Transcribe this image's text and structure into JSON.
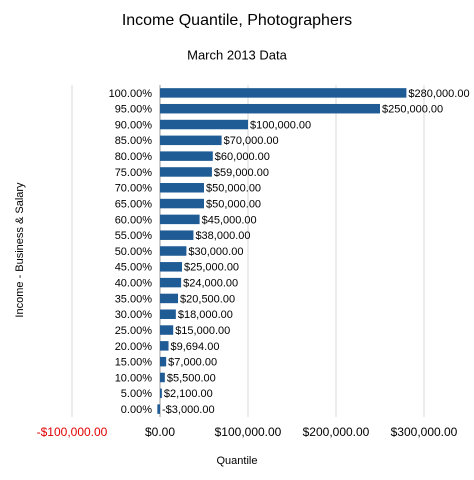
{
  "chart_data": {
    "type": "barh",
    "title": "Income Quantile, Photographers",
    "subtitle": "March 2013 Data",
    "x_label": "Quantile",
    "y_label": "Income - Business & Salary",
    "categories": [
      "100.00%",
      "95.00%",
      "90.00%",
      "85.00%",
      "80.00%",
      "75.00%",
      "70.00%",
      "65.00%",
      "60.00%",
      "55.00%",
      "50.00%",
      "45.00%",
      "40.00%",
      "35.00%",
      "30.00%",
      "25.00%",
      "20.00%",
      "15.00%",
      "10.00%",
      "5.00%",
      "0.00%"
    ],
    "values": [
      280000,
      250000,
      100000,
      70000,
      60000,
      59000,
      50000,
      50000,
      45000,
      38000,
      30000,
      25000,
      24000,
      20500,
      18000,
      15000,
      9694,
      7000,
      5500,
      2100,
      -3000
    ],
    "value_labels": [
      "$280,000.00",
      "$250,000.00",
      "$100,000.00",
      "$70,000.00",
      "$60,000.00",
      "$59,000.00",
      "$50,000.00",
      "$50,000.00",
      "$45,000.00",
      "$38,000.00",
      "$30,000.00",
      "$25,000.00",
      "$24,000.00",
      "$20,500.00",
      "$18,000.00",
      "$15,000.00",
      "$9,694.00",
      "$7,000.00",
      "$5,500.00",
      "$2,100.00",
      "-$3,000.00"
    ],
    "color": "#1f5b94",
    "negative_color": "#e00000",
    "xlim": [
      -100000,
      300000
    ],
    "xticks": [
      {
        "value": -100000,
        "label": "-$100,000.00"
      },
      {
        "value": 0,
        "label": "$0.00"
      },
      {
        "value": 100000,
        "label": "$100,000.00"
      },
      {
        "value": 200000,
        "label": "$200,000.00"
      },
      {
        "value": 300000,
        "label": "$300,000.00"
      }
    ],
    "grid": true
  }
}
